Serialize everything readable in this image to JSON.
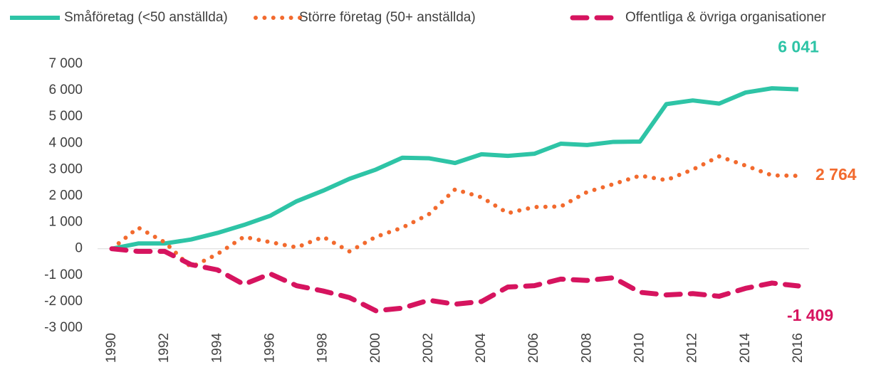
{
  "chart_data": {
    "type": "line",
    "x": [
      1990,
      1991,
      1992,
      1993,
      1994,
      1995,
      1996,
      1997,
      1998,
      1999,
      2000,
      2001,
      2002,
      2003,
      2004,
      2005,
      2006,
      2007,
      2008,
      2009,
      2010,
      2011,
      2012,
      2013,
      2014,
      2015,
      2016
    ],
    "xlim": [
      1990,
      2016
    ],
    "xticks": [
      1990,
      1992,
      1994,
      1996,
      1998,
      2000,
      2002,
      2004,
      2006,
      2008,
      2010,
      2012,
      2014,
      2016
    ],
    "ylim": [
      -3000,
      7000
    ],
    "yticks": [
      {
        "value": -3000,
        "label": "-3 000"
      },
      {
        "value": -2000,
        "label": "-2 000"
      },
      {
        "value": -1000,
        "label": "-1 000"
      },
      0,
      {
        "value": 1000,
        "label": "1 000"
      },
      {
        "value": 2000,
        "label": "2 000"
      },
      {
        "value": 3000,
        "label": "3 000"
      },
      {
        "value": 4000,
        "label": "4 000"
      },
      {
        "value": 5000,
        "label": "5 000"
      },
      {
        "value": 6000,
        "label": "6 000"
      },
      {
        "value": 7000,
        "label": "7 000"
      }
    ],
    "grid": false,
    "legend": "top",
    "series": [
      {
        "name": "Småföretag (<50 anställda)",
        "color": "#2ec4a6",
        "style": "solid",
        "values": [
          0,
          200,
          200,
          350,
          600,
          900,
          1250,
          1800,
          2200,
          2650,
          3000,
          3450,
          3430,
          3250,
          3580,
          3520,
          3600,
          3980,
          3930,
          4050,
          4060,
          5480,
          5620,
          5500,
          5920,
          6080,
          6041
        ],
        "value_labels": [
          null,
          null,
          null,
          null,
          null,
          null,
          null,
          null,
          null,
          null,
          null,
          null,
          null,
          null,
          null,
          null,
          null,
          null,
          null,
          null,
          null,
          null,
          null,
          null,
          null,
          null,
          "6 041"
        ]
      },
      {
        "name": "Större företag (50+ anställda)",
        "color": "#f26a2e",
        "style": "dotted",
        "values": [
          0,
          800,
          250,
          -700,
          -200,
          450,
          250,
          50,
          450,
          -100,
          450,
          800,
          1300,
          2250,
          1950,
          1350,
          1580,
          1600,
          2150,
          2450,
          2770,
          2600,
          3000,
          3500,
          3150,
          2780,
          2764
        ],
        "value_labels": [
          null,
          null,
          null,
          null,
          null,
          null,
          null,
          null,
          null,
          null,
          null,
          null,
          null,
          null,
          null,
          null,
          null,
          null,
          null,
          null,
          null,
          null,
          null,
          null,
          null,
          null,
          "2 764"
        ]
      },
      {
        "name": "Offentliga & övriga organisationer",
        "color": "#d6145f",
        "style": "dashed",
        "values": [
          0,
          -100,
          -100,
          -600,
          -800,
          -1350,
          -950,
          -1400,
          -1600,
          -1850,
          -2350,
          -2250,
          -1950,
          -2100,
          -2000,
          -1450,
          -1400,
          -1150,
          -1200,
          -1100,
          -1650,
          -1750,
          -1700,
          -1800,
          -1500,
          -1300,
          -1409
        ],
        "value_labels": [
          null,
          null,
          null,
          null,
          null,
          null,
          null,
          null,
          null,
          null,
          null,
          null,
          null,
          null,
          null,
          null,
          null,
          null,
          null,
          null,
          null,
          null,
          null,
          null,
          null,
          null,
          "-1 409"
        ]
      }
    ]
  }
}
